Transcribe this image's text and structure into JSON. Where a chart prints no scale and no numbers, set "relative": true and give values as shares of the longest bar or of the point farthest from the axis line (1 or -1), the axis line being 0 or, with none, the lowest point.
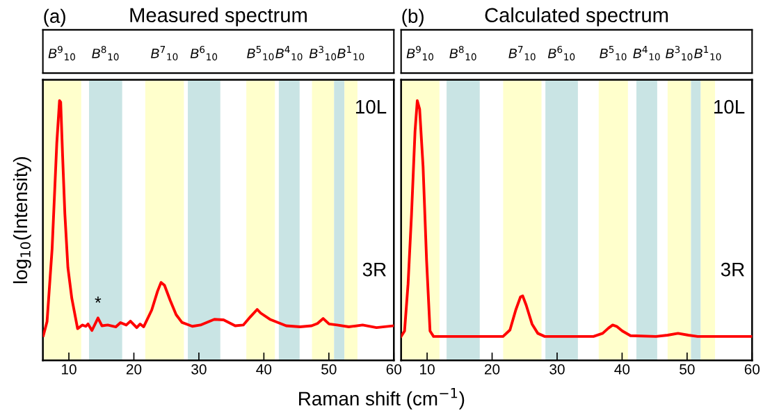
{
  "chart_data": [
    {
      "type": "line",
      "title": "Measured spectrum",
      "xlabel": "Raman shift (cm$^{−1}$)",
      "ylabel": "log$_{10}$(Intensity)",
      "relative": true,
      "xlim": [
        6,
        60
      ],
      "xticks": [
        10,
        20,
        30,
        40,
        50,
        60
      ],
      "grid": false,
      "legend": false,
      "marker": "none",
      "line_style": "solid",
      "series": [
        {
          "color": "#ff0000",
          "x": [
            6.07,
            6.64,
            7.42,
            8.14,
            8.56,
            8.74,
            9.03,
            9.38,
            9.85,
            10.45,
            11.34,
            12.06,
            12.59,
            12.95,
            13.55,
            14.48,
            15.09,
            15.98,
            17.23,
            17.94,
            18.83,
            19.47,
            20.44,
            20.97,
            21.5,
            22.75,
            23.64,
            24.18,
            24.71,
            25.6,
            26.5,
            27.39,
            28.99,
            30.24,
            32.38,
            33.8,
            35.59,
            36.83,
            37.9,
            38.97,
            39.51,
            40.93,
            43.43,
            45.57,
            47.35,
            48.24,
            49.13,
            50.03,
            51.27,
            53.06,
            55.19,
            57.33,
            59.94
          ],
          "values": [
            0.095,
            0.149,
            0.429,
            0.836,
            1.0,
            0.994,
            0.79,
            0.565,
            0.357,
            0.239,
            0.122,
            0.136,
            0.131,
            0.14,
            0.115,
            0.163,
            0.133,
            0.136,
            0.129,
            0.145,
            0.136,
            0.151,
            0.126,
            0.14,
            0.129,
            0.194,
            0.266,
            0.3,
            0.289,
            0.23,
            0.176,
            0.146,
            0.131,
            0.136,
            0.158,
            0.156,
            0.133,
            0.136,
            0.167,
            0.196,
            0.182,
            0.158,
            0.133,
            0.129,
            0.133,
            0.142,
            0.161,
            0.14,
            0.136,
            0.129,
            0.136,
            0.126,
            0.133
          ]
        }
      ],
      "bands": [
        {
          "axis": "x",
          "from": 6.0,
          "to": 11.9,
          "label": "B$^{9}$$_{10}$",
          "color": "#ffffcc"
        },
        {
          "axis": "x",
          "from": 13.1,
          "to": 18.2,
          "label": "B$^{8}$$_{10}$",
          "color": "#c9e4e4"
        },
        {
          "axis": "x",
          "from": 21.75,
          "to": 27.7,
          "label": "B$^{7}$$_{10}$",
          "color": "#ffffcc"
        },
        {
          "axis": "x",
          "from": 28.3,
          "to": 33.3,
          "label": "B$^{6}$$_{10}$",
          "color": "#c9e4e4"
        },
        {
          "axis": "x",
          "from": 37.3,
          "to": 41.7,
          "label": "B$^{5}$$_{10}$",
          "color": "#ffffcc"
        },
        {
          "axis": "x",
          "from": 42.3,
          "to": 45.5,
          "label": "B$^{4}$$_{10}$",
          "color": "#c9e4e4"
        },
        {
          "axis": "x",
          "from": 47.4,
          "to": 50.8,
          "label": "B$^{3}$$_{10}$",
          "color": "#ffffcc"
        },
        {
          "axis": "x",
          "from": 50.8,
          "to": 52.4,
          "color": "#c9e4e4"
        },
        {
          "axis": "x",
          "from": 52.4,
          "to": 54.4,
          "label": "B$^{1}$$_{10}$",
          "color": "#ffffcc"
        }
      ],
      "annotations": [
        "(a)",
        "10L",
        "3R",
        {
          "text": "*",
          "x": 14.48,
          "y": 0.163
        }
      ]
    },
    {
      "type": "line",
      "title": "Calculated spectrum",
      "relative": true,
      "xlim": [
        6,
        60
      ],
      "xticks": [
        10,
        20,
        30,
        40,
        50,
        60
      ],
      "grid": false,
      "legend": false,
      "marker": "none",
      "line_style": "solid",
      "series": [
        {
          "color": "#ff0000",
          "x": [
            6.0,
            6.53,
            7.07,
            7.6,
            8.14,
            8.49,
            8.85,
            9.38,
            9.92,
            10.45,
            10.99,
            21.68,
            22.75,
            23.64,
            24.36,
            24.71,
            25.25,
            26.14,
            27.03,
            28.1,
            35.59,
            37.01,
            37.9,
            38.55,
            39.15,
            40.04,
            41.29,
            45.21,
            47.0,
            48.6,
            50.2,
            51.63,
            59.94
          ],
          "values": [
            0.092,
            0.113,
            0.294,
            0.56,
            0.881,
            1.0,
            0.967,
            0.745,
            0.384,
            0.113,
            0.092,
            0.092,
            0.117,
            0.194,
            0.244,
            0.248,
            0.212,
            0.14,
            0.104,
            0.092,
            0.092,
            0.104,
            0.124,
            0.136,
            0.131,
            0.113,
            0.095,
            0.092,
            0.097,
            0.104,
            0.097,
            0.092,
            0.092
          ]
        }
      ],
      "bands": [
        {
          "axis": "x",
          "from": 6.0,
          "to": 11.9,
          "label": "B$^{9}$$_{10}$",
          "color": "#ffffcc"
        },
        {
          "axis": "x",
          "from": 13.0,
          "to": 18.1,
          "label": "B$^{8}$$_{10}$",
          "color": "#c9e4e4"
        },
        {
          "axis": "x",
          "from": 21.7,
          "to": 27.6,
          "label": "B$^{7}$$_{10}$",
          "color": "#ffffcc"
        },
        {
          "axis": "x",
          "from": 28.2,
          "to": 33.2,
          "label": "B$^{6}$$_{10}$",
          "color": "#c9e4e4"
        },
        {
          "axis": "x",
          "from": 36.4,
          "to": 40.9,
          "label": "B$^{5}$$_{10}$",
          "color": "#ffffcc"
        },
        {
          "axis": "x",
          "from": 42.2,
          "to": 45.4,
          "label": "B$^{4}$$_{10}$",
          "color": "#c9e4e4"
        },
        {
          "axis": "x",
          "from": 47.0,
          "to": 50.6,
          "label": "B$^{3}$$_{10}$",
          "color": "#ffffcc"
        },
        {
          "axis": "x",
          "from": 50.6,
          "to": 52.1,
          "color": "#c9e4e4"
        },
        {
          "axis": "x",
          "from": 52.1,
          "to": 54.3,
          "label": "B$^{1}$$_{10}$",
          "color": "#ffffcc"
        }
      ],
      "annotations": [
        "(b)",
        "10L",
        "3R"
      ]
    }
  ]
}
